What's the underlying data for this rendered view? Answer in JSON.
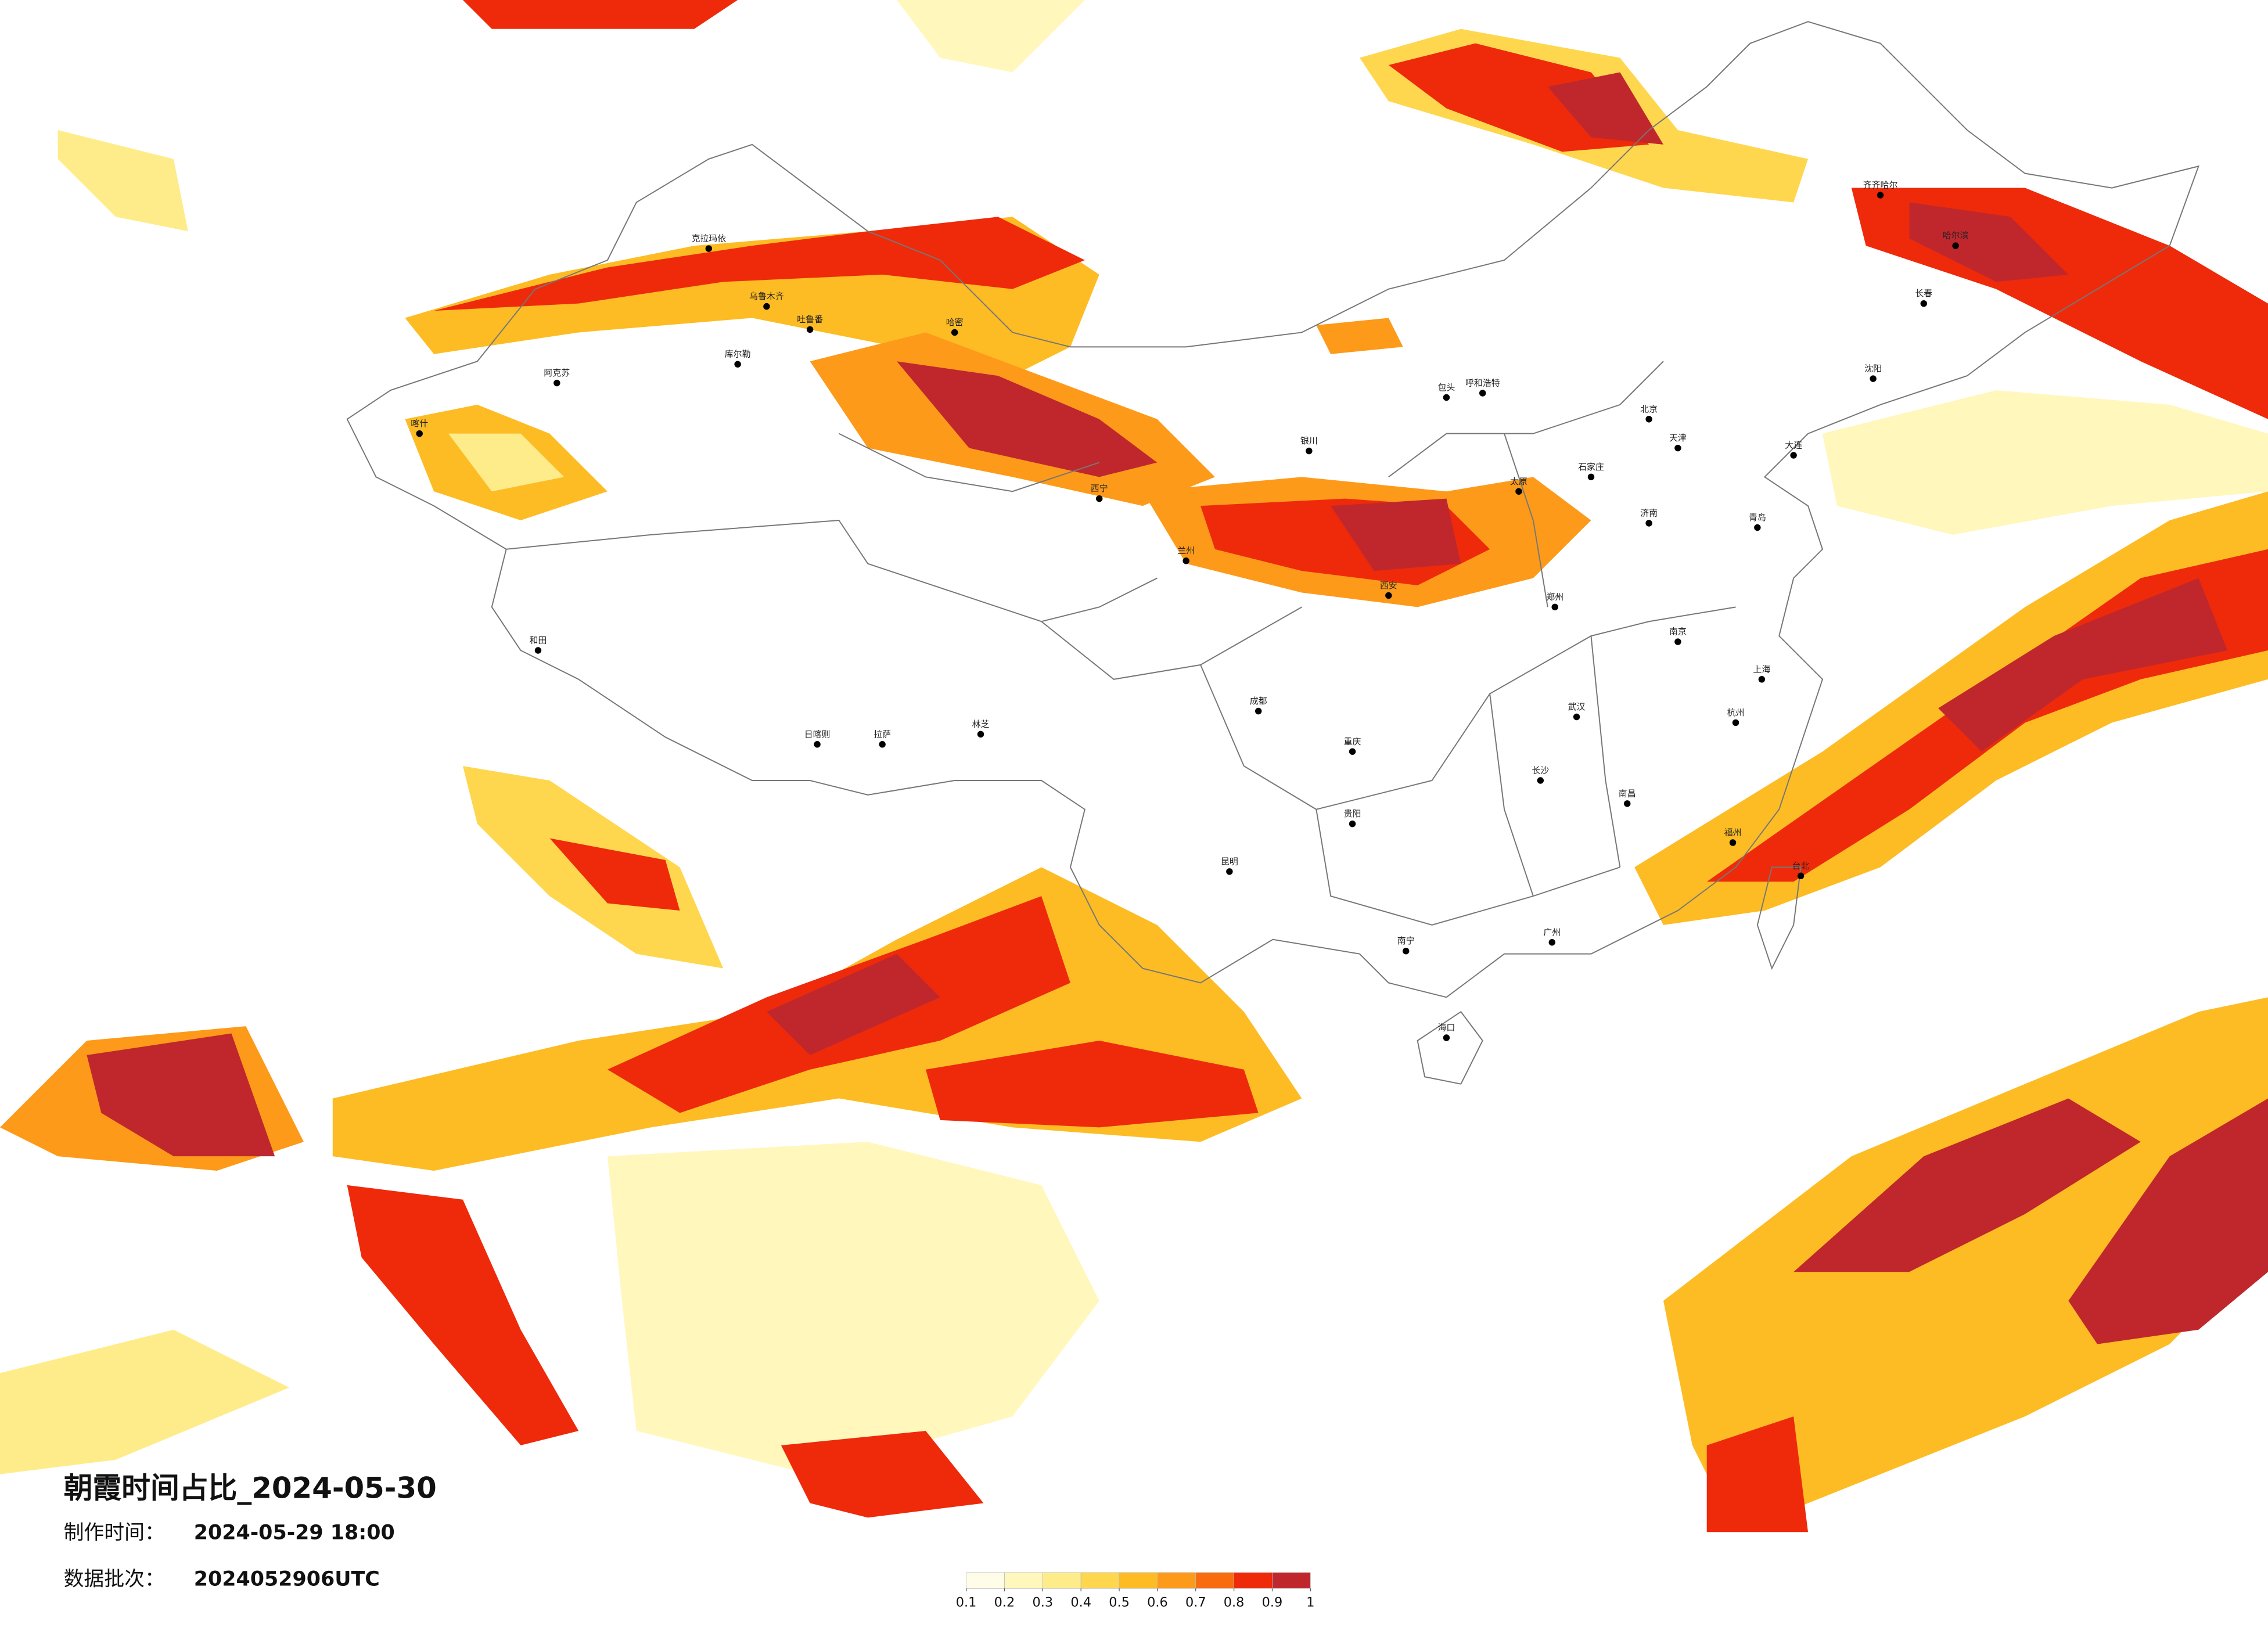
{
  "map": {
    "title": "朝霞时间占比_2024-05-30",
    "made_label": "制作时间：",
    "made_time": "2024-05-29 18:00",
    "batch_label": "数据批次：",
    "batch": "2024052906UTC",
    "cities": [
      "克拉玛依",
      "乌鲁木齐",
      "吐鲁番",
      "阿克苏",
      "喀什",
      "库尔勒",
      "哈密",
      "和田",
      "拉萨",
      "日喀则",
      "林芝",
      "西宁",
      "兰州",
      "银川",
      "呼和浩特",
      "包头",
      "北京",
      "天津",
      "石家庄",
      "太原",
      "济南",
      "郑州",
      "西安",
      "哈尔滨",
      "长春",
      "沈阳",
      "齐齐哈尔",
      "成都",
      "重庆",
      "贵阳",
      "昆明",
      "武汉",
      "长沙",
      "南昌",
      "南京",
      "上海",
      "杭州",
      "福州",
      "广州",
      "南宁",
      "海口",
      "台北",
      "大连",
      "青岛"
    ],
    "legend": {
      "ticks": [
        0.1,
        0.2,
        0.3,
        0.4,
        0.5,
        0.6,
        0.7,
        0.8,
        0.9,
        1
      ],
      "colors": [
        "#fffce8",
        "#fff7bc",
        "#feec8a",
        "#fed74f",
        "#fdbc24",
        "#fd9a1a",
        "#f86b0e",
        "#ee2a0a",
        "#c0272d"
      ]
    }
  }
}
